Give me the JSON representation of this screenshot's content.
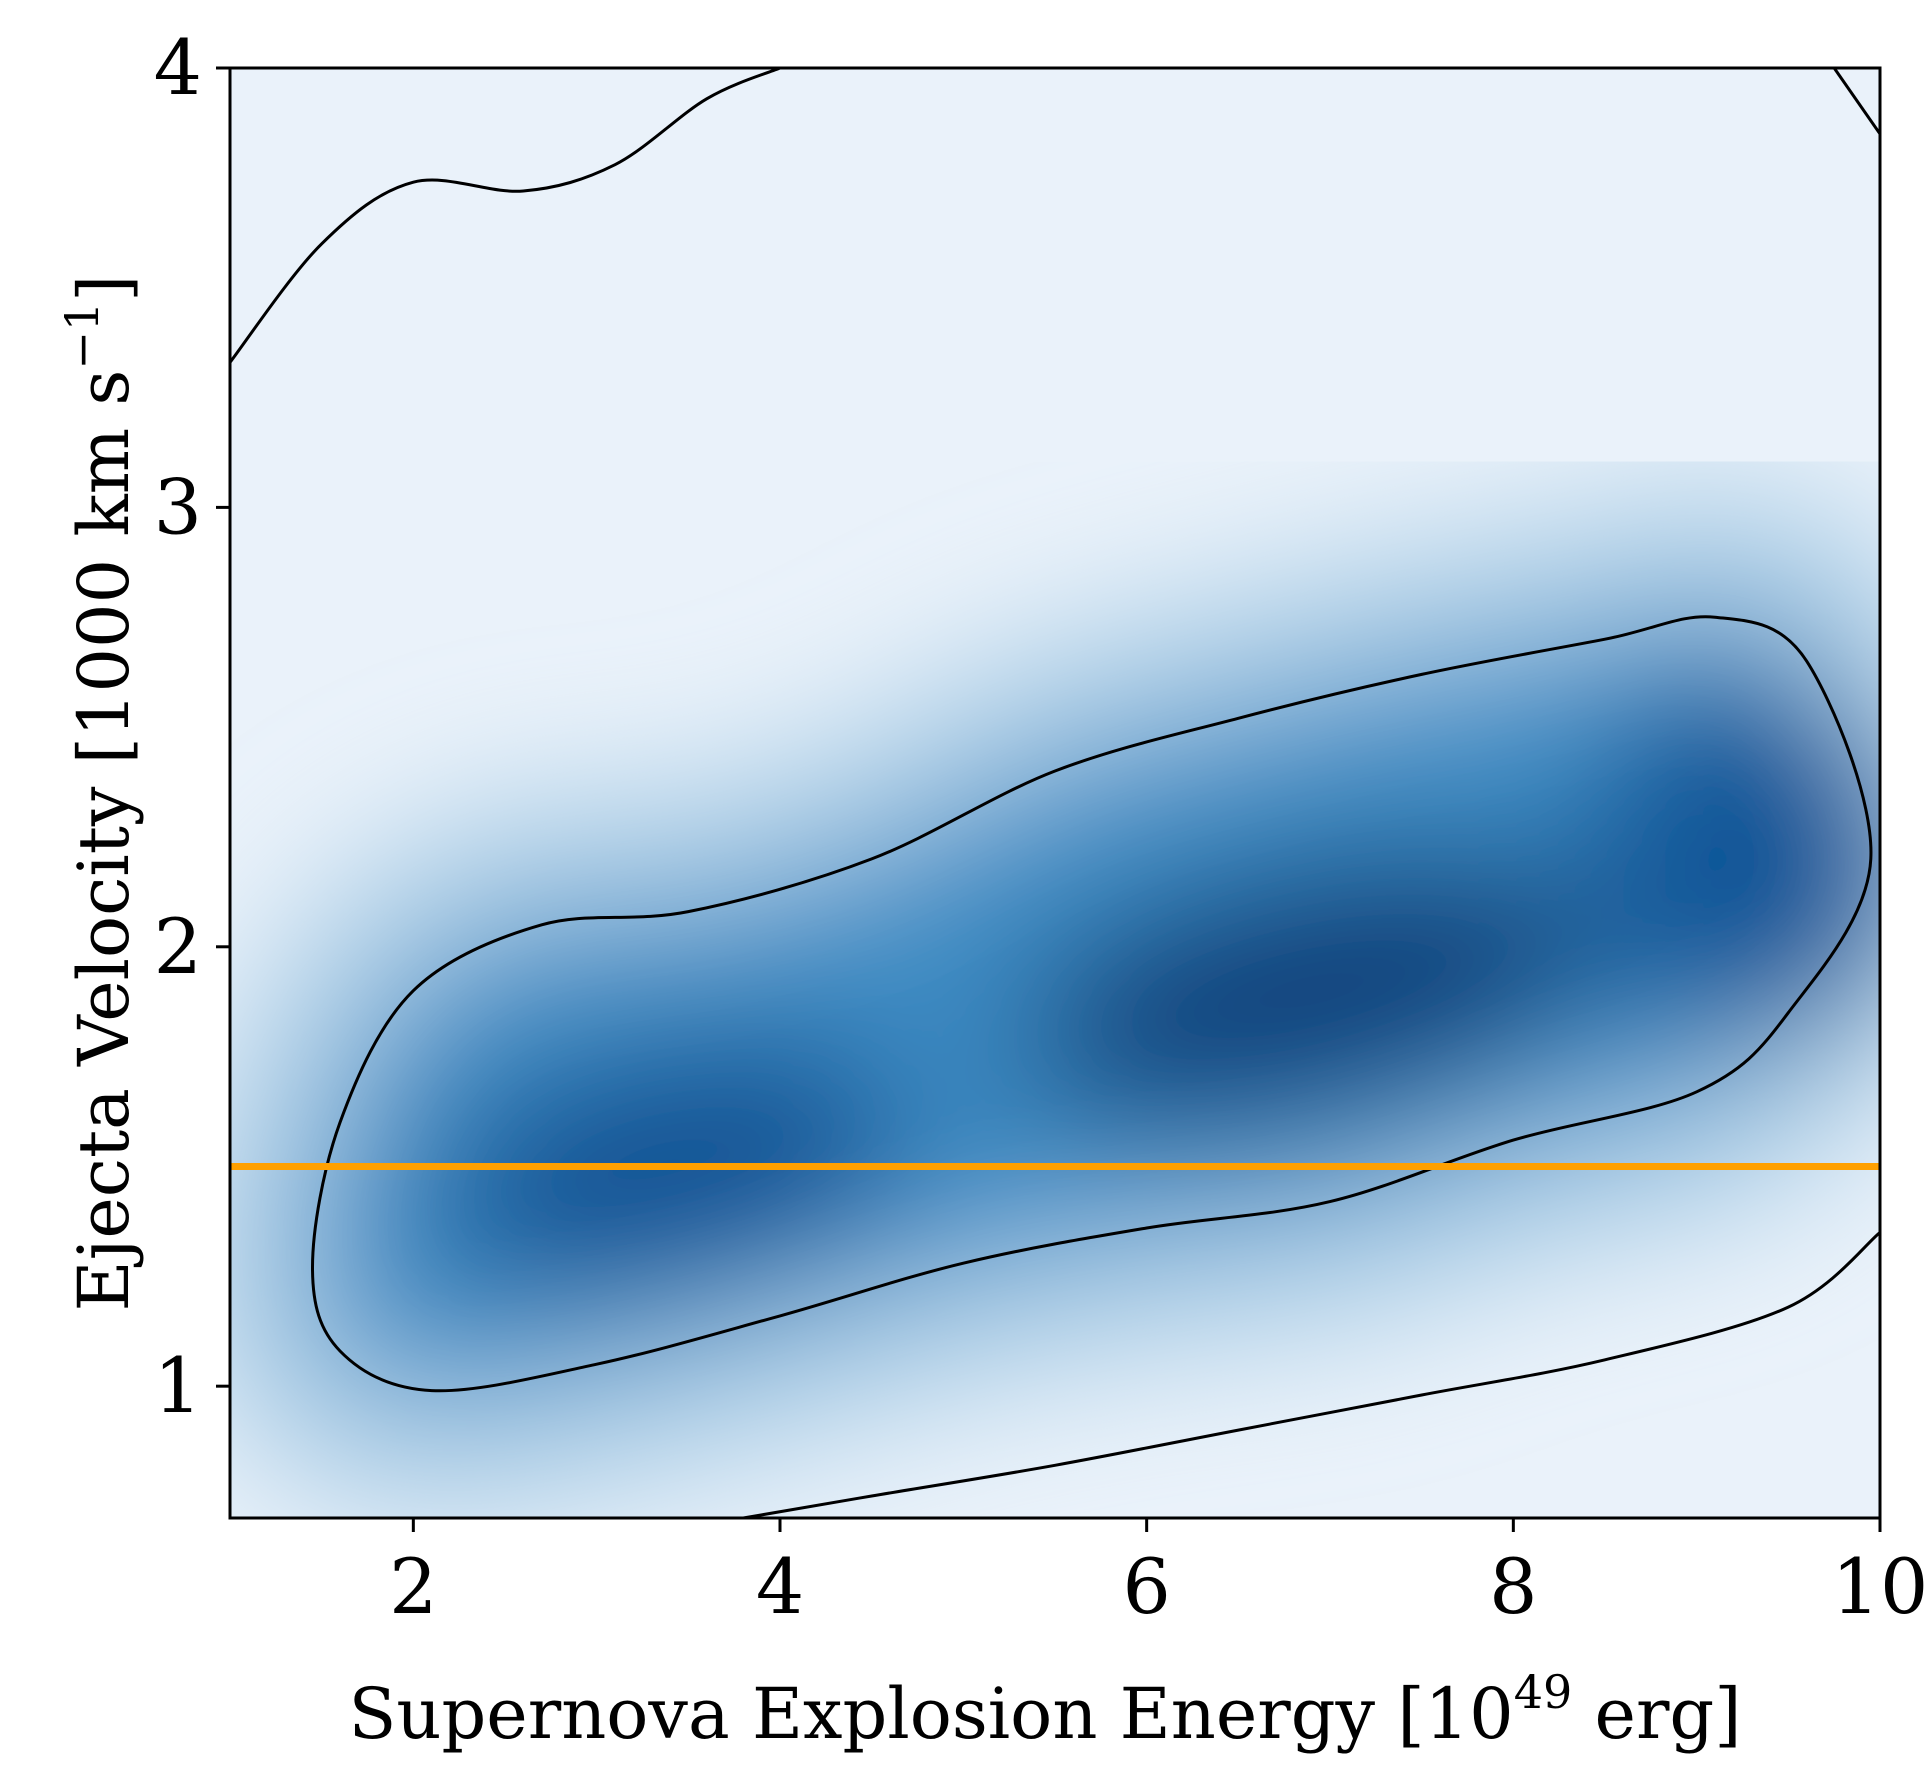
{
  "chart_data": {
    "type": "heatmap",
    "subtype": "2d kernel density with contours",
    "xlabel": "Supernova Explosion Energy [10",
    "xlabel_exponent": "49",
    "xlabel_suffix": " erg]",
    "ylabel": "Ejecta Velocity [1000 km s",
    "ylabel_exponent": "−1",
    "ylabel_suffix": "]",
    "xlim": [
      1,
      10
    ],
    "ylim": [
      0.7,
      4.0
    ],
    "xticks": [
      2,
      4,
      6,
      8,
      10
    ],
    "yticks": [
      1,
      2,
      3,
      4
    ],
    "colormap": "Blues",
    "density_peaks": [
      {
        "x": 6.9,
        "y": 1.9,
        "weight": 1.0
      },
      {
        "x": 3.4,
        "y": 1.5,
        "weight": 0.85
      },
      {
        "x": 9.3,
        "y": 2.2,
        "weight": 0.8
      }
    ],
    "contours": [
      {
        "name": "inner contour",
        "points": [
          [
            2.1,
            0.99
          ],
          [
            3.0,
            1.05
          ],
          [
            4.0,
            1.16
          ],
          [
            5.0,
            1.28
          ],
          [
            6.0,
            1.36
          ],
          [
            7.0,
            1.42
          ],
          [
            8.0,
            1.56
          ],
          [
            9.0,
            1.67
          ],
          [
            9.5,
            1.85
          ],
          [
            9.95,
            2.2
          ],
          [
            9.6,
            2.65
          ],
          [
            9.1,
            2.75
          ],
          [
            8.5,
            2.7
          ],
          [
            7.5,
            2.62
          ],
          [
            6.5,
            2.52
          ],
          [
            5.5,
            2.4
          ],
          [
            4.5,
            2.2
          ],
          [
            3.5,
            2.08
          ],
          [
            2.7,
            2.05
          ],
          [
            2.0,
            1.9
          ],
          [
            1.6,
            1.6
          ],
          [
            1.45,
            1.27
          ],
          [
            1.6,
            1.08
          ],
          [
            2.1,
            0.99
          ]
        ]
      },
      {
        "name": "outer contour upper",
        "points": [
          [
            1.0,
            3.33
          ],
          [
            1.5,
            3.6
          ],
          [
            2.0,
            3.74
          ],
          [
            2.6,
            3.72
          ],
          [
            3.1,
            3.78
          ],
          [
            3.6,
            3.93
          ],
          [
            4.0,
            4.0
          ]
        ]
      },
      {
        "name": "outer contour corner",
        "points": [
          [
            9.75,
            4.0
          ],
          [
            10.0,
            3.85
          ]
        ]
      },
      {
        "name": "outer contour lower",
        "points": [
          [
            3.8,
            0.7
          ],
          [
            4.5,
            0.75
          ],
          [
            5.5,
            0.82
          ],
          [
            6.5,
            0.9
          ],
          [
            7.5,
            0.98
          ],
          [
            8.5,
            1.06
          ],
          [
            9.5,
            1.18
          ],
          [
            10.0,
            1.35
          ]
        ]
      }
    ],
    "reference_line": {
      "y": 1.5,
      "color": "#ffa000"
    }
  }
}
